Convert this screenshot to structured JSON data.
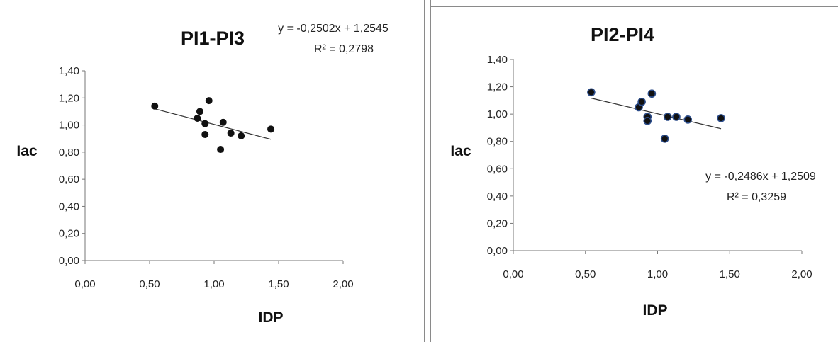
{
  "chart_data": [
    {
      "type": "scatter",
      "title": "PI1-PI3",
      "xlabel": "IDP",
      "ylabel": "Iac",
      "xlim": [
        0,
        2
      ],
      "ylim": [
        0,
        1.4
      ],
      "x_ticks": [
        "0,00",
        "0,50",
        "1,00",
        "1,50",
        "2,00"
      ],
      "y_ticks": [
        "0,00",
        "0,20",
        "0,40",
        "0,60",
        "0,80",
        "1,00",
        "1,20",
        "1,40"
      ],
      "grid": false,
      "legend": "none",
      "equation": "y = -0,2502x + 1,2545",
      "r_squared": "R² = 0,2798",
      "trendline": {
        "slope": -0.2502,
        "intercept": 1.2545,
        "x_range": [
          0.54,
          1.44
        ]
      },
      "points": [
        {
          "x": 0.54,
          "y": 1.14
        },
        {
          "x": 0.87,
          "y": 1.05
        },
        {
          "x": 0.89,
          "y": 1.1
        },
        {
          "x": 0.93,
          "y": 1.01
        },
        {
          "x": 0.93,
          "y": 0.93
        },
        {
          "x": 0.96,
          "y": 1.18
        },
        {
          "x": 1.05,
          "y": 0.82
        },
        {
          "x": 1.07,
          "y": 1.02
        },
        {
          "x": 1.13,
          "y": 0.94
        },
        {
          "x": 1.21,
          "y": 0.92
        },
        {
          "x": 1.44,
          "y": 0.97
        }
      ],
      "marker_color": "#111111",
      "line_color": "#333333"
    },
    {
      "type": "scatter",
      "title": "PI2-PI4",
      "xlabel": "IDP",
      "ylabel": "Iac",
      "xlim": [
        0,
        2
      ],
      "ylim": [
        0,
        1.4
      ],
      "x_ticks": [
        "0,00",
        "0,50",
        "1,00",
        "1,50",
        "2,00"
      ],
      "y_ticks": [
        "0,00",
        "0,20",
        "0,40",
        "0,60",
        "0,80",
        "1,00",
        "1,20",
        "1,40"
      ],
      "grid": false,
      "legend": "none",
      "equation": "y = -0,2486x + 1,2509",
      "r_squared": "R² = 0,3259",
      "trendline": {
        "slope": -0.2486,
        "intercept": 1.2509,
        "x_range": [
          0.54,
          1.44
        ]
      },
      "points": [
        {
          "x": 0.54,
          "y": 1.16
        },
        {
          "x": 0.87,
          "y": 1.05
        },
        {
          "x": 0.89,
          "y": 1.09
        },
        {
          "x": 0.93,
          "y": 0.98
        },
        {
          "x": 0.93,
          "y": 0.95
        },
        {
          "x": 0.96,
          "y": 1.15
        },
        {
          "x": 1.05,
          "y": 0.82
        },
        {
          "x": 1.07,
          "y": 0.98
        },
        {
          "x": 1.13,
          "y": 0.98
        },
        {
          "x": 1.21,
          "y": 0.96
        },
        {
          "x": 1.44,
          "y": 0.97
        }
      ],
      "marker_color": "#111111",
      "marker_edge": "#2b4c8a",
      "line_color": "#333333"
    }
  ]
}
